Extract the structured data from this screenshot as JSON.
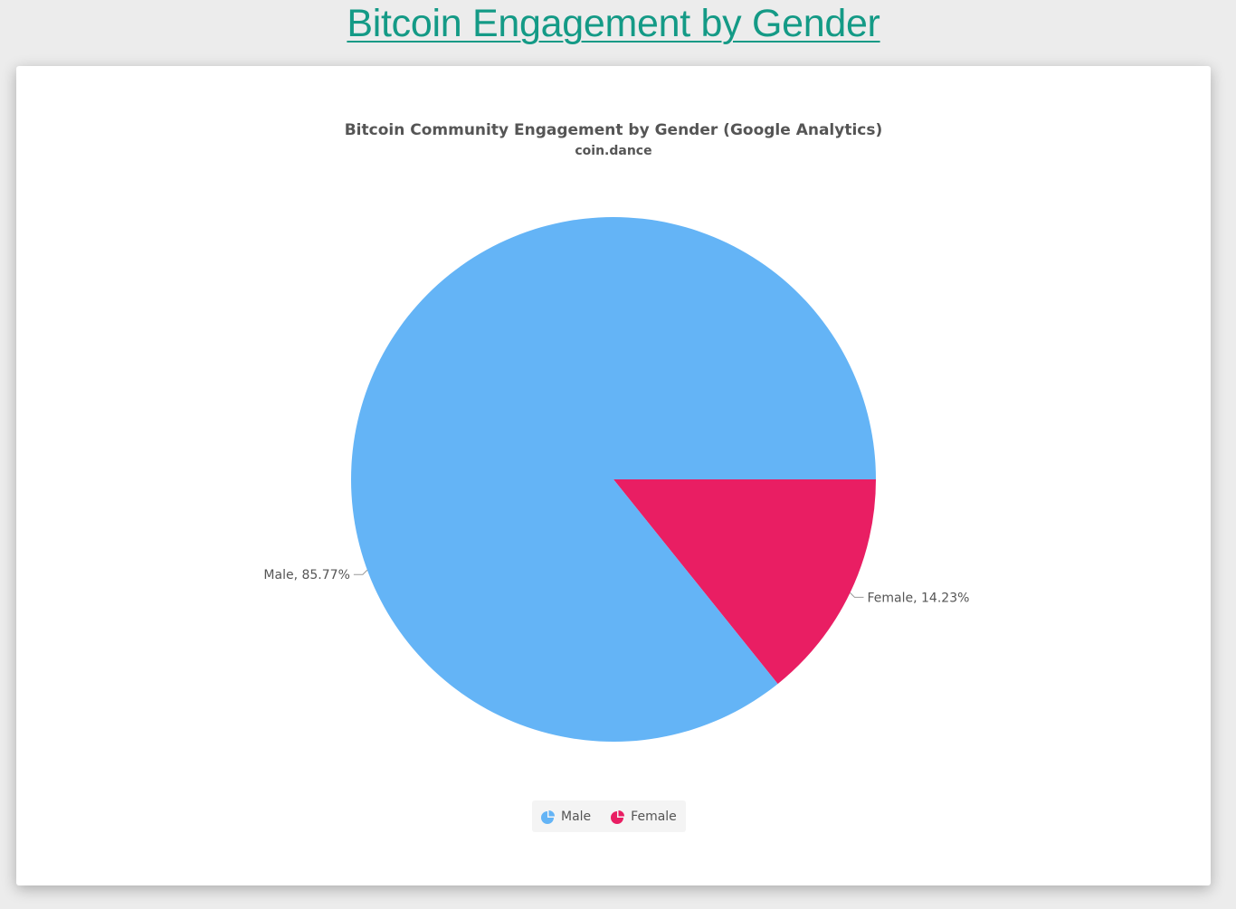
{
  "page": {
    "heading": "Bitcoin Engagement by Gender"
  },
  "chart_data": {
    "type": "pie",
    "title": "Bitcoin Community Engagement by Gender (Google Analytics)",
    "subtitle": "coin.dance",
    "slices": [
      {
        "name": "Male",
        "value": 85.77,
        "label": "Male, 85.77%",
        "color": "#64b4f6"
      },
      {
        "name": "Female",
        "value": 14.23,
        "label": "Female, 14.23%",
        "color": "#e91e63"
      }
    ],
    "legend": {
      "placement": "bottom-center",
      "items": [
        "Male",
        "Female"
      ]
    }
  }
}
